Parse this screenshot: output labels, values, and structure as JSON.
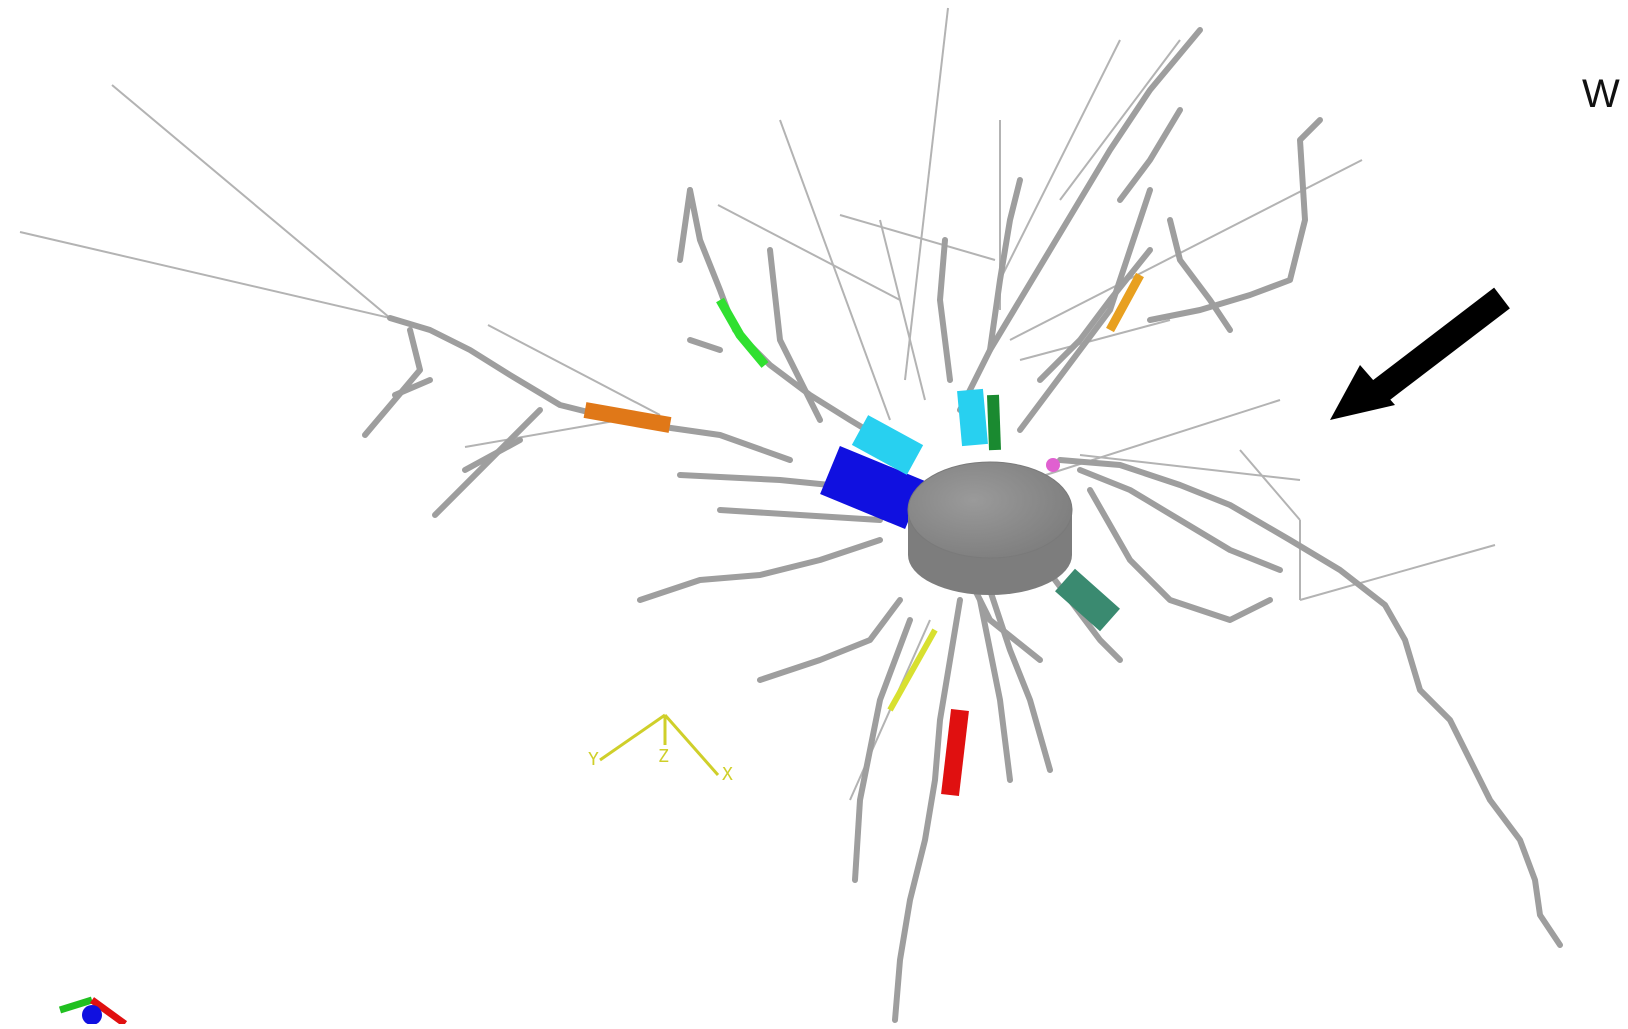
{
  "corner_label": "W",
  "axis_triad": {
    "y": "Y",
    "z": "Z",
    "x": "X"
  },
  "colors": {
    "background": "#ffffff",
    "branch": "#9a9a9a",
    "soma": "#8c8c8c",
    "arrow": "#000000",
    "axis": "#cfcf2a",
    "highlight_blue": "#1010e0",
    "highlight_cyan": "#28d0f0",
    "highlight_orange": "#e07818",
    "highlight_green": "#30e030",
    "highlight_red": "#e01010",
    "highlight_teal": "#3a8a70",
    "highlight_yellow": "#d8e030",
    "highlight_pink": "#e060d0"
  }
}
